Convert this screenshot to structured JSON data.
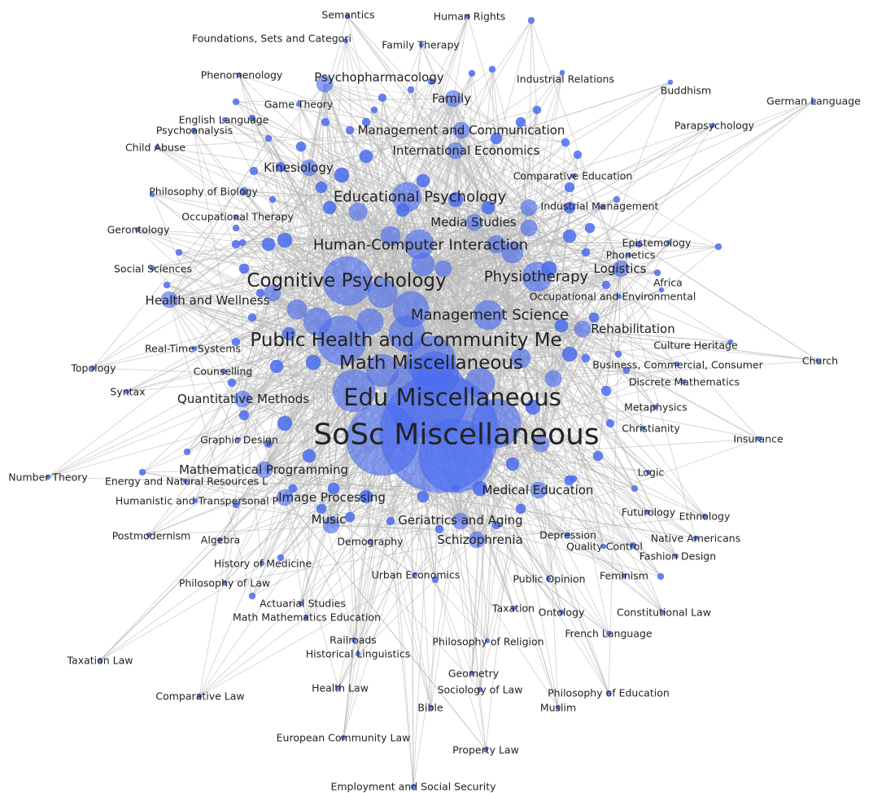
{
  "colors": {
    "background": "#ffffff",
    "edge": "#b8b8b8",
    "node_fill": "#4a6cf0",
    "node_stroke": "#3050d8",
    "label": "#222222"
  },
  "nodes": [
    {
      "id": "sosc-misc",
      "label": "SoSc Miscellaneous",
      "weight": 100,
      "tier": 1
    },
    {
      "id": "edu-misc",
      "label": "Edu Miscellaneous",
      "weight": 80,
      "tier": 2
    },
    {
      "id": "cognitive-psychology",
      "label": "Cognitive Psychology",
      "weight": 45,
      "tier": 3
    },
    {
      "id": "public-health",
      "label": "Public Health and Community Me",
      "weight": 42,
      "tier": 3
    },
    {
      "id": "math-misc",
      "label": "Math Miscellaneous",
      "weight": 40,
      "tier": 3
    },
    {
      "id": "hci",
      "label": "Human-Computer Interaction",
      "weight": 30,
      "tier": 4
    },
    {
      "id": "management-science",
      "label": "Management Science",
      "weight": 30,
      "tier": 4
    },
    {
      "id": "educational-psychology",
      "label": "Educational Psychology",
      "weight": 22,
      "tier": 4
    },
    {
      "id": "physiotherapy",
      "label": "Physiotherapy",
      "weight": 22,
      "tier": 4
    },
    {
      "id": "media-studies",
      "label": "Media Studies",
      "weight": 18,
      "tier": 5
    },
    {
      "id": "management-communication",
      "label": "Management and Communication",
      "weight": 16,
      "tier": 5
    },
    {
      "id": "international-economics",
      "label": "International Economics",
      "weight": 15,
      "tier": 5
    },
    {
      "id": "kinesiology",
      "label": "Kinesiology",
      "weight": 16,
      "tier": 5
    },
    {
      "id": "psychopharmacology",
      "label": "Psychopharmacology",
      "weight": 14,
      "tier": 5
    },
    {
      "id": "family",
      "label": "Family",
      "weight": 13,
      "tier": 5
    },
    {
      "id": "rehabilitation",
      "label": "Rehabilitation",
      "weight": 13,
      "tier": 5
    },
    {
      "id": "logistics",
      "label": "Logistics",
      "weight": 12,
      "tier": 5
    },
    {
      "id": "quantitative-methods",
      "label": "Quantitative Methods",
      "weight": 12,
      "tier": 5
    },
    {
      "id": "mathematical-programming",
      "label": "Mathematical Programming",
      "weight": 12,
      "tier": 5
    },
    {
      "id": "image-processing",
      "label": "Image Processing",
      "weight": 12,
      "tier": 5
    },
    {
      "id": "medical-education",
      "label": "Medical Education",
      "weight": 12,
      "tier": 5
    },
    {
      "id": "geriatrics-aging",
      "label": "Geriatrics and Aging",
      "weight": 12,
      "tier": 5
    },
    {
      "id": "schizophrenia",
      "label": "Schizophrenia",
      "weight": 12,
      "tier": 5
    },
    {
      "id": "health-wellness",
      "label": "Health and Wellness",
      "weight": 12,
      "tier": 5
    },
    {
      "id": "music",
      "label": "Music",
      "weight": 11,
      "tier": 5
    },
    {
      "id": "industrial-management",
      "label": "Industrial Management",
      "weight": 10,
      "tier": 6
    },
    {
      "id": "comparative-education",
      "label": "Comparative Education",
      "weight": 10,
      "tier": 6
    },
    {
      "id": "occupational-therapy",
      "label": "Occupational Therapy",
      "weight": 10,
      "tier": 6
    },
    {
      "id": "game-theory",
      "label": "Game Theory",
      "weight": 10,
      "tier": 6
    },
    {
      "id": "industrial-relations",
      "label": "Industrial Relations",
      "weight": 10,
      "tier": 6
    },
    {
      "id": "family-therapy",
      "label": "Family Therapy",
      "weight": 10,
      "tier": 6
    },
    {
      "id": "english-language",
      "label": "English Language",
      "weight": 10,
      "tier": 6
    },
    {
      "id": "occupational-environmental",
      "label": "Occupational and Environmental",
      "weight": 10,
      "tier": 6
    },
    {
      "id": "real-time-systems",
      "label": "Real-Time Systems",
      "weight": 9,
      "tier": 6
    },
    {
      "id": "counselling",
      "label": "Counselling",
      "weight": 9,
      "tier": 6
    },
    {
      "id": "graphic-design",
      "label": "Graphic Design",
      "weight": 9,
      "tier": 6
    },
    {
      "id": "demography",
      "label": "Demography",
      "weight": 9,
      "tier": 6
    },
    {
      "id": "urban-economics",
      "label": "Urban Economics",
      "weight": 9,
      "tier": 6
    },
    {
      "id": "depression",
      "label": "Depression",
      "weight": 9,
      "tier": 6
    },
    {
      "id": "christianity",
      "label": "Christianity",
      "weight": 9,
      "tier": 6
    },
    {
      "id": "culture-heritage",
      "label": "Culture Heritage",
      "weight": 8,
      "tier": 6
    },
    {
      "id": "business-commercial",
      "label": "Business, Commercial, Consumer",
      "weight": 8,
      "tier": 6
    },
    {
      "id": "discrete-mathematics",
      "label": "Discrete Mathematics",
      "weight": 8,
      "tier": 6
    },
    {
      "id": "metaphysics",
      "label": "Metaphysics",
      "weight": 8,
      "tier": 6
    },
    {
      "id": "philosophy-biology",
      "label": "Philosophy of Biology",
      "weight": 7,
      "tier": 6
    },
    {
      "id": "psychoanalysis",
      "label": "Psychoanalysis",
      "weight": 7,
      "tier": 6
    },
    {
      "id": "phenomenology",
      "label": "Phenomenology",
      "weight": 7,
      "tier": 6
    },
    {
      "id": "foundations-sets",
      "label": "Foundations, Sets and Categori",
      "weight": 7,
      "tier": 6
    },
    {
      "id": "semantics",
      "label": "Semantics",
      "weight": 7,
      "tier": 6
    },
    {
      "id": "human-rights",
      "label": "Human Rights",
      "weight": 8,
      "tier": 6
    },
    {
      "id": "buddhism",
      "label": "Buddhism",
      "weight": 7,
      "tier": 6
    },
    {
      "id": "german-language",
      "label": "German Language",
      "weight": 6,
      "tier": 6
    },
    {
      "id": "parapsychology",
      "label": "Parapsychology",
      "weight": 7,
      "tier": 6
    },
    {
      "id": "child-abuse",
      "label": "Child Abuse",
      "weight": 7,
      "tier": 6
    },
    {
      "id": "gerontology",
      "label": "Gerontology",
      "weight": 7,
      "tier": 6
    },
    {
      "id": "social-sciences",
      "label": "Social Sciences",
      "weight": 7,
      "tier": 6
    },
    {
      "id": "epistemology",
      "label": "Epistemology",
      "weight": 7,
      "tier": 6
    },
    {
      "id": "phonetics",
      "label": "Phonetics",
      "weight": 7,
      "tier": 6
    },
    {
      "id": "africa",
      "label": "Africa",
      "weight": 7,
      "tier": 6
    },
    {
      "id": "church",
      "label": "Church",
      "weight": 6,
      "tier": 6
    },
    {
      "id": "topology",
      "label": "Topology",
      "weight": 7,
      "tier": 6
    },
    {
      "id": "syntax",
      "label": "Syntax",
      "weight": 7,
      "tier": 6
    },
    {
      "id": "insurance",
      "label": "Insurance",
      "weight": 6,
      "tier": 6
    },
    {
      "id": "number-theory",
      "label": "Number Theory",
      "weight": 6,
      "tier": 6
    },
    {
      "id": "energy-natural-resources",
      "label": "Energy and Natural Resources L",
      "weight": 7,
      "tier": 6
    },
    {
      "id": "humanistic-transpersonal",
      "label": "Humanistic and Transpersonal P",
      "weight": 7,
      "tier": 6
    },
    {
      "id": "logic",
      "label": "Logic",
      "weight": 7,
      "tier": 6
    },
    {
      "id": "futurology",
      "label": "Futurology",
      "weight": 7,
      "tier": 6
    },
    {
      "id": "ethnology",
      "label": "Ethnology",
      "weight": 7,
      "tier": 6
    },
    {
      "id": "postmodernism",
      "label": "Postmodernism",
      "weight": 7,
      "tier": 6
    },
    {
      "id": "algebra",
      "label": "Algebra",
      "weight": 7,
      "tier": 6
    },
    {
      "id": "native-americans",
      "label": "Native Americans",
      "weight": 7,
      "tier": 6
    },
    {
      "id": "quality-control",
      "label": "Quality Control",
      "weight": 7,
      "tier": 6
    },
    {
      "id": "fashion-design",
      "label": "Fashion Design",
      "weight": 7,
      "tier": 6
    },
    {
      "id": "history-medicine",
      "label": "History of Medicine",
      "weight": 7,
      "tier": 6
    },
    {
      "id": "philosophy-law",
      "label": "Philosophy of Law",
      "weight": 7,
      "tier": 6
    },
    {
      "id": "public-opinion",
      "label": "Public Opinion",
      "weight": 7,
      "tier": 6
    },
    {
      "id": "feminism",
      "label": "Feminism",
      "weight": 7,
      "tier": 6
    },
    {
      "id": "actuarial-studies",
      "label": "Actuarial Studies",
      "weight": 7,
      "tier": 6
    },
    {
      "id": "math-mathematics-education",
      "label": "Math Mathematics Education",
      "weight": 7,
      "tier": 6
    },
    {
      "id": "taxation",
      "label": "Taxation",
      "weight": 7,
      "tier": 6
    },
    {
      "id": "ontology",
      "label": "Ontology",
      "weight": 7,
      "tier": 6
    },
    {
      "id": "constitutional-law",
      "label": "Constitutional Law",
      "weight": 7,
      "tier": 6
    },
    {
      "id": "french-language",
      "label": "French Language",
      "weight": 7,
      "tier": 6
    },
    {
      "id": "railroads",
      "label": "Railroads",
      "weight": 7,
      "tier": 6
    },
    {
      "id": "historical-linguistics",
      "label": "Historical Linguistics",
      "weight": 7,
      "tier": 6
    },
    {
      "id": "philosophy-religion",
      "label": "Philosophy of Religion",
      "weight": 7,
      "tier": 6
    },
    {
      "id": "taxation-law",
      "label": "Taxation Law",
      "weight": 6,
      "tier": 6
    },
    {
      "id": "geometry",
      "label": "Geometry",
      "weight": 7,
      "tier": 6
    },
    {
      "id": "comparative-law",
      "label": "Comparative Law",
      "weight": 6,
      "tier": 6
    },
    {
      "id": "health-law",
      "label": "Health Law",
      "weight": 7,
      "tier": 6
    },
    {
      "id": "sociology-law",
      "label": "Sociology of Law",
      "weight": 7,
      "tier": 6
    },
    {
      "id": "philosophy-education",
      "label": "Philosophy of Education",
      "weight": 7,
      "tier": 6
    },
    {
      "id": "bible",
      "label": "Bible",
      "weight": 7,
      "tier": 6
    },
    {
      "id": "muslim",
      "label": "Muslim",
      "weight": 7,
      "tier": 6
    },
    {
      "id": "european-community-law",
      "label": "European Community Law",
      "weight": 6,
      "tier": 6
    },
    {
      "id": "property-law",
      "label": "Property Law",
      "weight": 6,
      "tier": 6
    },
    {
      "id": "employment-social-security",
      "label": "Employment and Social Security",
      "weight": 6,
      "tier": 6
    }
  ]
}
